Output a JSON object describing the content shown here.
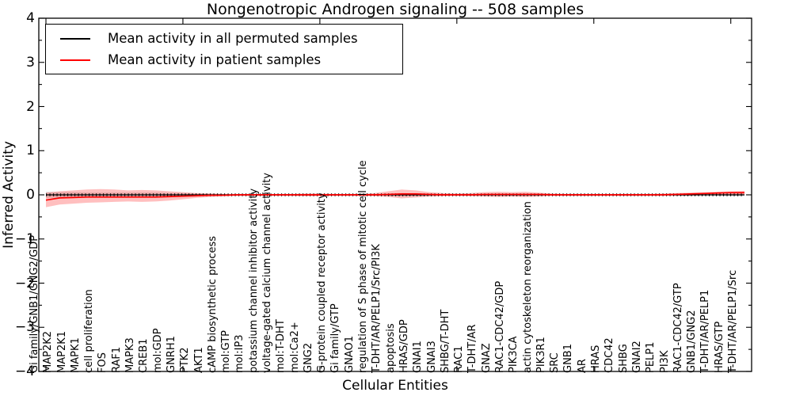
{
  "figure": {
    "title": "Nongenotropic Androgen signaling -- 508 samples",
    "xlabel": "Cellular Entities",
    "ylabel": "Inferred Activity",
    "legend": [
      {
        "label": "Mean activity in all permuted samples",
        "color": "#000000"
      },
      {
        "label": "Mean activity in patient samples",
        "color": "#ff0000"
      }
    ]
  },
  "chart_data": {
    "type": "line",
    "title": "Nongenotropic Androgen signaling -- 508 samples",
    "xlabel": "Cellular Entities",
    "ylabel": "Inferred Activity",
    "ylim": [
      -4,
      4
    ],
    "yticks": [
      4,
      3,
      2,
      1,
      0,
      -1,
      -2,
      -3,
      -4
    ],
    "ytick_minor_step": 0.5,
    "x_major_ticks": [
      0,
      10,
      20,
      30,
      40,
      50
    ],
    "grid": false,
    "legend_position": "upper left",
    "band_colors": {
      "patient": "rgba(255,0,0,0.25)",
      "permuted": "rgba(0,0,0,0.13)"
    },
    "categories": [
      "Gi family/GNB1/GNG2/GDP",
      "MAP2K2",
      "MAP2K1",
      "MAPK1",
      "cell proliferation",
      "FOS",
      "RAF1",
      "MAPK3",
      "CREB1",
      "mol:GDP",
      "GNRH1",
      "PTK2",
      "AKT1",
      "cAMP biosynthetic process",
      "mol:GTP",
      "mol:IP3",
      "potassium channel inhibitor activity",
      "voltage-gated calcium channel activity",
      "mol:T-DHT",
      "mol:Ca2+",
      "GNG2",
      "G-protein coupled receptor activity",
      "Gi family/GTP",
      "GNAO1",
      "regulation of S phase of mitotic cell cycle",
      "T-DHT/AR/PELP1/Src/PI3K",
      "apoptosis",
      "HRAS/GDP",
      "GNAI1",
      "GNAI3",
      "SHBG/T-DHT",
      "RAC1",
      "T-DHT/AR",
      "GNAZ",
      "RAC1-CDC42/GDP",
      "PIK3CA",
      "actin cytoskeleton reorganization",
      "PIK3R1",
      "SRC",
      "GNB1",
      "AR",
      "HRAS",
      "CDC42",
      "SHBG",
      "GNAI2",
      "PELP1",
      "PI3K",
      "RAC1-CDC42/GTP",
      "GNB1/GNG2",
      "T-DHT/AR/PELP1",
      "HRAS/GTP",
      "T-DHT/AR/PELP1/Src"
    ],
    "series": [
      {
        "name": "Mean activity in all permuted samples",
        "color": "#000000",
        "values": [
          0,
          0,
          0,
          0,
          0,
          0,
          0,
          0,
          0,
          0,
          0,
          0,
          0,
          0,
          0,
          0,
          0,
          0,
          0,
          0,
          0,
          0,
          0,
          0,
          0,
          0,
          0,
          0,
          0,
          0,
          0,
          0,
          0,
          0,
          0,
          0,
          0,
          0,
          0,
          0,
          0,
          0,
          0,
          0,
          0,
          0,
          0,
          0,
          0,
          0,
          0,
          0
        ],
        "band_halfwidth": [
          0.07,
          0.06,
          0.06,
          0.05,
          0.05,
          0.05,
          0.05,
          0.05,
          0.05,
          0.04,
          0.04,
          0.03,
          0.03,
          0.02,
          0.02,
          0.02,
          0.02,
          0.02,
          0.02,
          0.02,
          0.02,
          0.02,
          0.02,
          0.02,
          0.02,
          0.03,
          0.04,
          0.03,
          0.03,
          0.02,
          0.02,
          0.02,
          0.02,
          0.03,
          0.03,
          0.03,
          0.02,
          0.02,
          0.02,
          0.02,
          0.02,
          0.02,
          0.02,
          0.02,
          0.02,
          0.02,
          0.02,
          0.02,
          0.02,
          0.02,
          0.03,
          0.03
        ]
      },
      {
        "name": "Mean activity in patient samples",
        "color": "#ff0000",
        "values": [
          -0.12,
          -0.07,
          -0.06,
          -0.05,
          -0.05,
          -0.05,
          -0.05,
          -0.05,
          -0.05,
          -0.04,
          -0.03,
          -0.02,
          -0.01,
          -0.01,
          0,
          0,
          0,
          0,
          0,
          0,
          0,
          0,
          0,
          0,
          0,
          0.01,
          0.02,
          0.02,
          0.01,
          0,
          0,
          0,
          0.01,
          0.01,
          0.01,
          0.01,
          0.01,
          0,
          0,
          0,
          0,
          0,
          0,
          0,
          0,
          0,
          0.01,
          0.02,
          0.03,
          0.04,
          0.05,
          0.05
        ],
        "band_lower": [
          -0.28,
          -0.22,
          -0.2,
          -0.18,
          -0.17,
          -0.16,
          -0.15,
          -0.16,
          -0.15,
          -0.13,
          -0.1,
          -0.07,
          -0.05,
          -0.03,
          -0.02,
          -0.02,
          -0.02,
          -0.02,
          -0.02,
          -0.03,
          -0.03,
          -0.02,
          -0.02,
          -0.02,
          -0.03,
          -0.05,
          -0.08,
          -0.06,
          -0.04,
          -0.03,
          -0.02,
          -0.03,
          -0.04,
          -0.05,
          -0.04,
          -0.05,
          -0.04,
          -0.02,
          -0.02,
          -0.02,
          -0.02,
          -0.02,
          -0.02,
          -0.02,
          -0.02,
          -0.02,
          -0.02,
          -0.02,
          0,
          0,
          0.01,
          0.01
        ],
        "band_upper": [
          0.05,
          0.08,
          0.1,
          0.12,
          0.13,
          0.12,
          0.1,
          0.11,
          0.1,
          0.08,
          0.06,
          0.04,
          0.03,
          0.02,
          0.02,
          0.02,
          0.02,
          0.02,
          0.02,
          0.03,
          0.03,
          0.02,
          0.02,
          0.02,
          0.04,
          0.08,
          0.12,
          0.1,
          0.06,
          0.04,
          0.03,
          0.04,
          0.06,
          0.07,
          0.06,
          0.07,
          0.05,
          0.03,
          0.02,
          0.02,
          0.02,
          0.02,
          0.02,
          0.02,
          0.02,
          0.03,
          0.04,
          0.05,
          0.06,
          0.07,
          0.08,
          0.09
        ]
      }
    ]
  }
}
